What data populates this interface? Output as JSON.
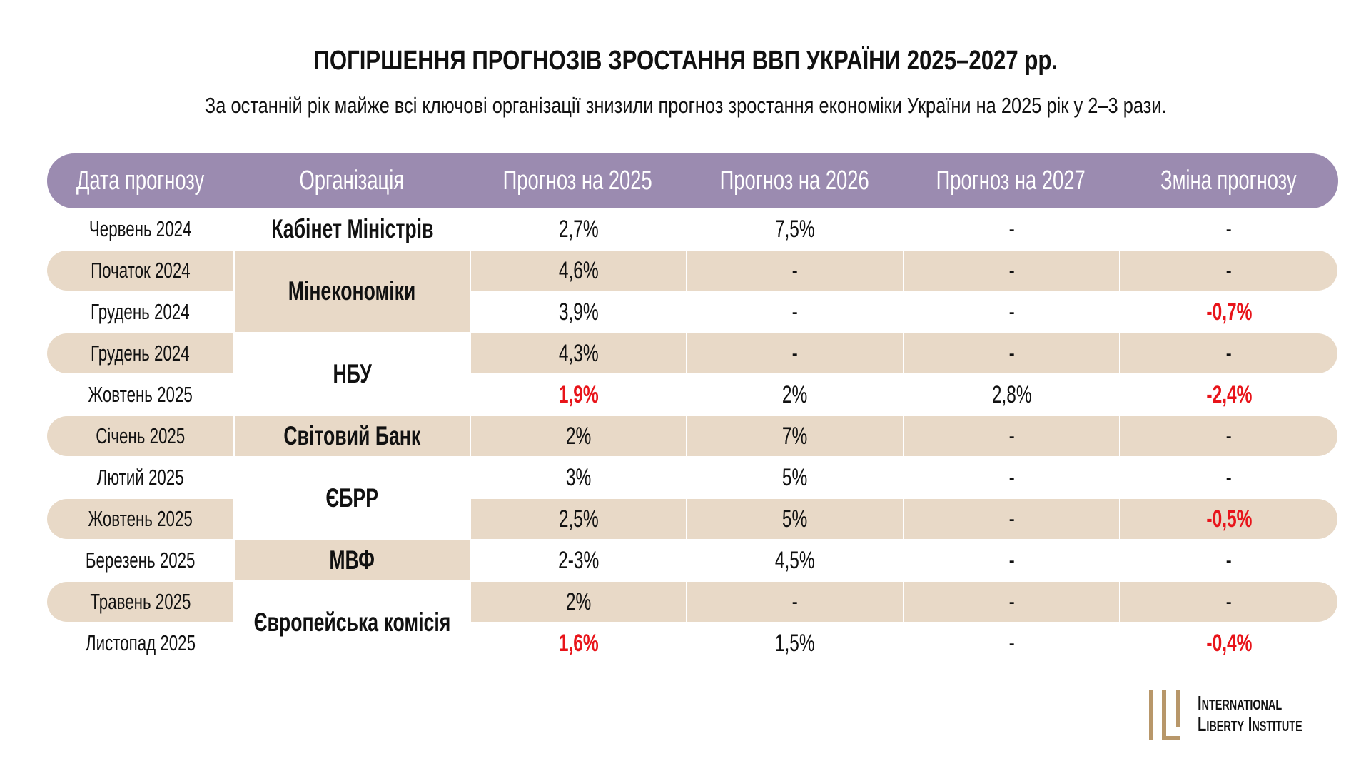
{
  "title": "ПОГІРШЕННЯ ПРОГНОЗІВ ЗРОСТАННЯ ВВП УКРАЇНИ 2025–2027 рр.",
  "subtitle": "За останній рік майже всі ключові організації знизили прогноз зростання економіки України на 2025 рік у 2–3 рази.",
  "colors": {
    "header": "#9b8bb0",
    "stripe": "#e8d9c7",
    "negative": "#e8141a",
    "logo": "#b8976a"
  },
  "table": {
    "headers": [
      "Дата прогнозу",
      "Організація",
      "Прогноз на 2025",
      "Прогноз на 2026",
      "Прогноз на 2027",
      "Зміна прогнозу"
    ],
    "organizations": [
      {
        "name": "Кабінет Міністрів",
        "start": 0,
        "span": 1,
        "shaded": false
      },
      {
        "name": "Мінекономіки",
        "start": 1,
        "span": 2,
        "shaded": true
      },
      {
        "name": "НБУ",
        "start": 3,
        "span": 2,
        "shaded": false
      },
      {
        "name": "Світовий Банк",
        "start": 5,
        "span": 1,
        "shaded": true
      },
      {
        "name": "ЄБРР",
        "start": 6,
        "span": 2,
        "shaded": false
      },
      {
        "name": "МВФ",
        "start": 8,
        "span": 1,
        "shaded": true
      },
      {
        "name": "Європейська комісія",
        "start": 9,
        "span": 2,
        "shaded": false
      }
    ],
    "rows": [
      {
        "date": "Червень 2024",
        "f2025": "2,7%",
        "f2026": "7,5%",
        "f2027": "-",
        "change": "-",
        "shaded": false,
        "red2025": false,
        "redChange": false
      },
      {
        "date": "Початок 2024",
        "f2025": "4,6%",
        "f2026": "-",
        "f2027": "-",
        "change": "-",
        "shaded": true,
        "red2025": false,
        "redChange": false
      },
      {
        "date": "Грудень 2024",
        "f2025": "3,9%",
        "f2026": "-",
        "f2027": "-",
        "change": "-0,7%",
        "shaded": false,
        "red2025": false,
        "redChange": true
      },
      {
        "date": "Грудень 2024",
        "f2025": "4,3%",
        "f2026": "-",
        "f2027": "-",
        "change": "-",
        "shaded": true,
        "red2025": false,
        "redChange": false
      },
      {
        "date": "Жовтень 2025",
        "f2025": "1,9%",
        "f2026": "2%",
        "f2027": "2,8%",
        "change": "-2,4%",
        "shaded": false,
        "red2025": true,
        "redChange": true
      },
      {
        "date": "Січень 2025",
        "f2025": "2%",
        "f2026": "7%",
        "f2027": "-",
        "change": "-",
        "shaded": true,
        "red2025": false,
        "redChange": false
      },
      {
        "date": "Лютий 2025",
        "f2025": "3%",
        "f2026": "5%",
        "f2027": "-",
        "change": "-",
        "shaded": false,
        "red2025": false,
        "redChange": false
      },
      {
        "date": "Жовтень 2025",
        "f2025": "2,5%",
        "f2026": "5%",
        "f2027": "-",
        "change": "-0,5%",
        "shaded": true,
        "red2025": false,
        "redChange": true
      },
      {
        "date": "Березень 2025",
        "f2025": "2-3%",
        "f2026": "4,5%",
        "f2027": "-",
        "change": "-",
        "shaded": false,
        "red2025": false,
        "redChange": false
      },
      {
        "date": "Травень 2025",
        "f2025": "2%",
        "f2026": "-",
        "f2027": "-",
        "change": "-",
        "shaded": true,
        "red2025": false,
        "redChange": false
      },
      {
        "date": "Листопад 2025",
        "f2025": "1,6%",
        "f2026": "1,5%",
        "f2027": "-",
        "change": "-0,4%",
        "shaded": false,
        "red2025": true,
        "redChange": true
      }
    ]
  },
  "logo": {
    "line1": "International",
    "line2": "Liberty Institute"
  }
}
